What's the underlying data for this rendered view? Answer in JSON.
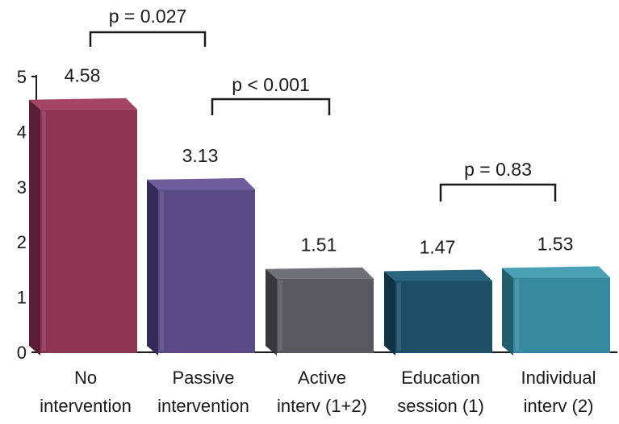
{
  "chart_data": {
    "type": "bar",
    "title": "",
    "xlabel": "",
    "ylabel": "",
    "ylim": [
      0,
      5
    ],
    "yticks": [
      "0",
      "1",
      "2",
      "3",
      "4",
      "5"
    ],
    "categories": [
      [
        "No",
        "intervention"
      ],
      [
        "Passive",
        "intervention"
      ],
      [
        "Active",
        "interv (1+2)"
      ],
      [
        "Education",
        "session (1)"
      ],
      [
        "Individual",
        "interv (2)"
      ]
    ],
    "values": [
      4.58,
      3.13,
      1.51,
      1.47,
      1.53
    ],
    "value_labels": [
      "4.58",
      "3.13",
      "1.51",
      "1.47",
      "1.53"
    ],
    "bar_colors": [
      {
        "front": "#8e3554",
        "side": "#5a1f35",
        "top": "#a64466"
      },
      {
        "front": "#5a4a85",
        "side": "#35295c",
        "top": "#6f5d9e"
      },
      {
        "front": "#58585e",
        "side": "#37373c",
        "top": "#707077"
      },
      {
        "front": "#1d5068",
        "side": "#103345",
        "top": "#2a6580"
      },
      {
        "front": "#36899e",
        "side": "#225e6e",
        "top": "#4aa0b5"
      }
    ],
    "comparisons": [
      {
        "from": 0,
        "to": 1,
        "label": "p = 0.027"
      },
      {
        "from": 1,
        "to": 2,
        "label": "p < 0.001"
      },
      {
        "from": 3,
        "to": 4,
        "label": "p = 0.83"
      }
    ],
    "grid": false,
    "legend": "none"
  }
}
